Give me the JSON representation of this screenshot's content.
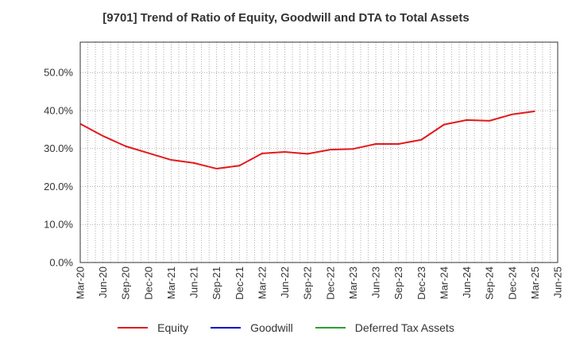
{
  "chart_data": {
    "type": "line",
    "title": "[9701]  Trend of Ratio of Equity, Goodwill and DTA to Total Assets",
    "xlabel": "",
    "ylabel": "",
    "ylim": [
      0,
      0.58
    ],
    "y_ticks": [
      0,
      0.1,
      0.2,
      0.3,
      0.4,
      0.5
    ],
    "y_tick_labels": [
      "0.0%",
      "10.0%",
      "20.0%",
      "30.0%",
      "40.0%",
      "50.0%"
    ],
    "grid": true,
    "legend_position": "bottom-center",
    "categories": [
      "Mar-20",
      "Jun-20",
      "Sep-20",
      "Dec-20",
      "Mar-21",
      "Jun-21",
      "Sep-21",
      "Dec-21",
      "Mar-22",
      "Jun-22",
      "Sep-22",
      "Dec-22",
      "Mar-23",
      "Jun-23",
      "Sep-23",
      "Dec-23",
      "Mar-24",
      "Jun-24",
      "Sep-24",
      "Dec-24",
      "Mar-25",
      "Jun-25"
    ],
    "series": [
      {
        "name": "Equity",
        "color": "#e31a1c",
        "values": [
          0.365,
          0.333,
          0.306,
          0.288,
          0.27,
          0.262,
          0.247,
          0.255,
          0.287,
          0.291,
          0.286,
          0.297,
          0.299,
          0.312,
          0.312,
          0.323,
          0.363,
          0.375,
          0.373,
          0.39,
          0.398,
          null
        ]
      },
      {
        "name": "Goodwill",
        "color": "#0000cc",
        "values": [
          null,
          null,
          null,
          null,
          null,
          null,
          null,
          null,
          null,
          null,
          null,
          null,
          null,
          null,
          null,
          null,
          null,
          null,
          null,
          null,
          null,
          null
        ]
      },
      {
        "name": "Deferred Tax Assets",
        "color": "#2ca02c",
        "values": [
          null,
          null,
          null,
          null,
          null,
          null,
          null,
          null,
          null,
          null,
          null,
          null,
          null,
          null,
          null,
          null,
          null,
          null,
          null,
          null,
          null,
          null
        ]
      }
    ]
  }
}
